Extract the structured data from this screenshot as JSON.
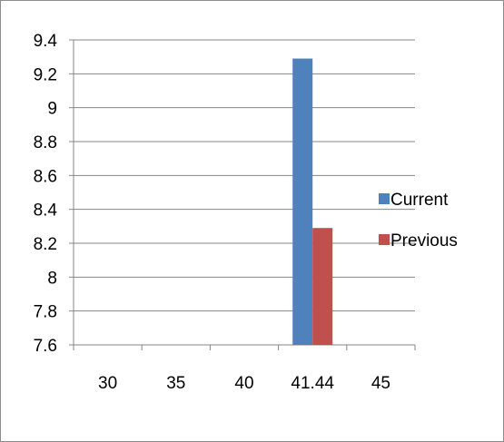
{
  "chart_data": {
    "type": "bar",
    "categories": [
      "30",
      "35",
      "40",
      "41.44",
      "45"
    ],
    "series": [
      {
        "name": "Current",
        "values": [
          null,
          null,
          null,
          9.29,
          null
        ],
        "color": "#4F81BD"
      },
      {
        "name": "Previous",
        "values": [
          null,
          null,
          null,
          8.29,
          null
        ],
        "color": "#C0504D"
      }
    ],
    "yticks": [
      "7.6",
      "7.8",
      "8",
      "8.2",
      "8.4",
      "8.6",
      "8.8",
      "9",
      "9.2",
      "9.4"
    ],
    "ylim": [
      7.6,
      9.4
    ],
    "grid": true,
    "legend": "right",
    "axis_color": "#868686",
    "grid_color": "#868686"
  }
}
